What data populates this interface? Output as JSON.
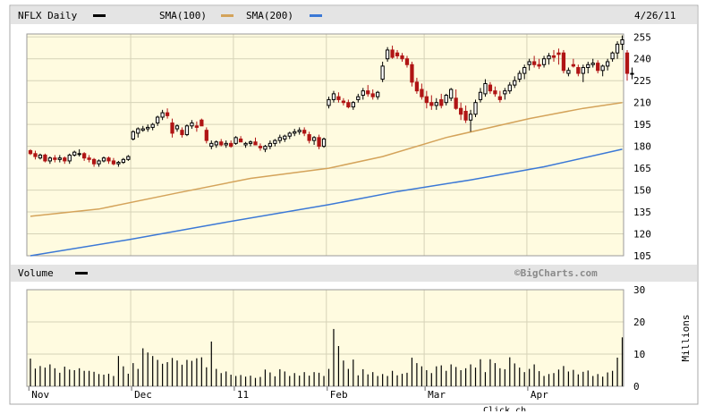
{
  "chart_data": {
    "type": "candlestick",
    "ticker_label": "NFLX Daily",
    "date_label": "4/26/11",
    "watermark": "©BigCharts.com",
    "footer_text": "Click ch",
    "legend": [
      {
        "label": "SMA(100)",
        "color": "#d4a35a"
      },
      {
        "label": "SMA(200)",
        "color": "#3b78d6"
      }
    ],
    "colors": {
      "price_legend": "#000000",
      "up": "#000000",
      "down": "#b01515",
      "volume": "#000000",
      "plot_bg": "#fffbe0",
      "grid": "#d6d3b8"
    },
    "price_axis": {
      "ticks": [
        255,
        240,
        225,
        210,
        195,
        180,
        165,
        150,
        135,
        120,
        105
      ],
      "ylim": [
        105,
        257
      ]
    },
    "volume_axis": {
      "title": "Volume",
      "unit_label": "Millions",
      "ticks": [
        30,
        20,
        10,
        0
      ],
      "ylim": [
        0,
        30
      ]
    },
    "x_labels": [
      "Nov",
      "Dec",
      "11",
      "Feb",
      "Mar",
      "Apr"
    ],
    "month_starts": [
      0,
      21,
      42,
      61,
      81,
      102
    ],
    "sessions": 122,
    "ohlc": [
      [
        177,
        178,
        174,
        175
      ],
      [
        175,
        177,
        171,
        173
      ],
      [
        172,
        175,
        171,
        174
      ],
      [
        174,
        175,
        169,
        170
      ],
      [
        170,
        173,
        168,
        172
      ],
      [
        172,
        174,
        169,
        171
      ],
      [
        171,
        174,
        169,
        172
      ],
      [
        172,
        173,
        168,
        170
      ],
      [
        170,
        175,
        168,
        174
      ],
      [
        174,
        177,
        173,
        176
      ],
      [
        175,
        178,
        173,
        175
      ],
      [
        175,
        176,
        170,
        172
      ],
      [
        172,
        174,
        169,
        171
      ],
      [
        171,
        172,
        166,
        168
      ],
      [
        168,
        171,
        166,
        170
      ],
      [
        170,
        173,
        169,
        172
      ],
      [
        172,
        173,
        168,
        170
      ],
      [
        170,
        172,
        167,
        168
      ],
      [
        168,
        170,
        166,
        169
      ],
      [
        169,
        172,
        168,
        171
      ],
      [
        171,
        174,
        170,
        173
      ],
      [
        185,
        191,
        184,
        190
      ],
      [
        189,
        193,
        186,
        192
      ],
      [
        191,
        194,
        190,
        192
      ],
      [
        192,
        195,
        190,
        193
      ],
      [
        193,
        196,
        191,
        195
      ],
      [
        196,
        201,
        194,
        200
      ],
      [
        200,
        205,
        198,
        203
      ],
      [
        203,
        206,
        199,
        201
      ],
      [
        196,
        199,
        186,
        189
      ],
      [
        192,
        195,
        190,
        194
      ],
      [
        191,
        193,
        186,
        188
      ],
      [
        188,
        195,
        187,
        194
      ],
      [
        194,
        198,
        192,
        196
      ],
      [
        194,
        197,
        190,
        193
      ],
      [
        198,
        199,
        194,
        194
      ],
      [
        191,
        193,
        182,
        184
      ],
      [
        180,
        184,
        178,
        182
      ],
      [
        181,
        184,
        179,
        183
      ],
      [
        183,
        185,
        180,
        181
      ],
      [
        181,
        184,
        179,
        182
      ],
      [
        182,
        184,
        179,
        180
      ],
      [
        182,
        187,
        181,
        186
      ],
      [
        185,
        187,
        183,
        183
      ],
      [
        181,
        183,
        179,
        182
      ],
      [
        182,
        184,
        180,
        183
      ],
      [
        183,
        186,
        181,
        181
      ],
      [
        180,
        182,
        177,
        179
      ],
      [
        178,
        181,
        176,
        180
      ],
      [
        180,
        184,
        178,
        182
      ],
      [
        182,
        185,
        180,
        184
      ],
      [
        184,
        188,
        182,
        186
      ],
      [
        185,
        188,
        183,
        187
      ],
      [
        187,
        190,
        185,
        189
      ],
      [
        189,
        192,
        187,
        190
      ],
      [
        190,
        193,
        188,
        191
      ],
      [
        191,
        193,
        187,
        189
      ],
      [
        188,
        190,
        182,
        184
      ],
      [
        184,
        187,
        181,
        186
      ],
      [
        186,
        188,
        178,
        180
      ],
      [
        180,
        186,
        179,
        185
      ],
      [
        208,
        214,
        206,
        212
      ],
      [
        212,
        218,
        210,
        216
      ],
      [
        214,
        217,
        210,
        212
      ],
      [
        211,
        213,
        208,
        210
      ],
      [
        210,
        212,
        206,
        207
      ],
      [
        207,
        211,
        205,
        210
      ],
      [
        212,
        216,
        210,
        214
      ],
      [
        215,
        220,
        212,
        218
      ],
      [
        218,
        222,
        214,
        216
      ],
      [
        216,
        219,
        212,
        214
      ],
      [
        214,
        218,
        212,
        217
      ],
      [
        226,
        238,
        224,
        235
      ],
      [
        240,
        248,
        238,
        246
      ],
      [
        246,
        249,
        240,
        241
      ],
      [
        244,
        246,
        240,
        242
      ],
      [
        242,
        244,
        238,
        240
      ],
      [
        240,
        242,
        234,
        236
      ],
      [
        236,
        238,
        221,
        224
      ],
      [
        224,
        227,
        216,
        218
      ],
      [
        219,
        223,
        212,
        214
      ],
      [
        214,
        218,
        206,
        210
      ],
      [
        210,
        215,
        205,
        208
      ],
      [
        208,
        213,
        205,
        210
      ],
      [
        212,
        216,
        206,
        208
      ],
      [
        210,
        216,
        208,
        215
      ],
      [
        213,
        220,
        211,
        219
      ],
      [
        213,
        219,
        205,
        206
      ],
      [
        206,
        210,
        198,
        202
      ],
      [
        204,
        208,
        196,
        198
      ],
      [
        198,
        205,
        190,
        202
      ],
      [
        202,
        212,
        200,
        210
      ],
      [
        212,
        220,
        210,
        217
      ],
      [
        216,
        226,
        214,
        223
      ],
      [
        222,
        224,
        216,
        218
      ],
      [
        218,
        221,
        214,
        216
      ],
      [
        214,
        218,
        210,
        212
      ],
      [
        216,
        220,
        212,
        218
      ],
      [
        218,
        224,
        216,
        222
      ],
      [
        222,
        228,
        220,
        225
      ],
      [
        226,
        232,
        224,
        230
      ],
      [
        230,
        236,
        226,
        234
      ],
      [
        236,
        240,
        232,
        238
      ],
      [
        238,
        242,
        234,
        236
      ],
      [
        236,
        240,
        233,
        235
      ],
      [
        236,
        242,
        234,
        240
      ],
      [
        240,
        244,
        236,
        242
      ],
      [
        242,
        246,
        238,
        241
      ],
      [
        244,
        247,
        236,
        243
      ],
      [
        244,
        246,
        230,
        232
      ],
      [
        230,
        234,
        228,
        232
      ],
      [
        236,
        240,
        234,
        235
      ],
      [
        234,
        236,
        228,
        230
      ],
      [
        230,
        236,
        224,
        234
      ],
      [
        234,
        238,
        230,
        236
      ],
      [
        236,
        240,
        234,
        237
      ],
      [
        237,
        239,
        230,
        232
      ],
      [
        232,
        236,
        228,
        235
      ],
      [
        235,
        240,
        232,
        238
      ],
      [
        240,
        245,
        238,
        244
      ],
      [
        244,
        252,
        240,
        250
      ],
      [
        250,
        256,
        246,
        253
      ],
      [
        244,
        246,
        225,
        230
      ],
      [
        230,
        234,
        226,
        230
      ]
    ],
    "sma100": [
      [
        0,
        132
      ],
      [
        14,
        137
      ],
      [
        30,
        148
      ],
      [
        45,
        158
      ],
      [
        61,
        165
      ],
      [
        72,
        173
      ],
      [
        85,
        186
      ],
      [
        102,
        199
      ],
      [
        113,
        206
      ],
      [
        121,
        210
      ]
    ],
    "sma200": [
      [
        0,
        105
      ],
      [
        20,
        116
      ],
      [
        40,
        128
      ],
      [
        61,
        140
      ],
      [
        75,
        149
      ],
      [
        90,
        157
      ],
      [
        105,
        166
      ],
      [
        121,
        178
      ]
    ],
    "volume": [
      8.6,
      5.5,
      6.3,
      5.8,
      6.8,
      5.6,
      4.2,
      6.1,
      5.2,
      5.0,
      5.6,
      4.8,
      4.8,
      4.5,
      3.8,
      3.6,
      3.9,
      3.2,
      9.4,
      6.2,
      3.9,
      7.2,
      5.4,
      11.8,
      10.5,
      9.4,
      8.2,
      7.0,
      7.5,
      8.8,
      8.0,
      6.7,
      8.2,
      7.9,
      8.7,
      9.0,
      5.9,
      13.9,
      5.4,
      4.1,
      4.6,
      3.6,
      3.2,
      3.5,
      3.0,
      3.3,
      2.6,
      2.9,
      5.2,
      4.3,
      3.1,
      5.3,
      4.6,
      3.2,
      4.1,
      3.3,
      4.4,
      3.3,
      4.4,
      4.2,
      3.2,
      5.4,
      17.8,
      12.5,
      8.0,
      5.4,
      8.3,
      3.4,
      5.3,
      3.7,
      4.4,
      3.2,
      3.8,
      3.2,
      4.8,
      3.4,
      3.9,
      4.2,
      8.9,
      7.2,
      6.2,
      5.0,
      4.1,
      6.2,
      6.5,
      4.8,
      6.8,
      6.0,
      5.0,
      5.6,
      6.8,
      5.8,
      8.4,
      4.4,
      8.4,
      7.2,
      5.6,
      5.3,
      9.0,
      7.1,
      5.8,
      4.4,
      5.4,
      6.8,
      4.7,
      3.2,
      3.8,
      4.1,
      5.2,
      6.3,
      4.6,
      5.1,
      3.7,
      4.5,
      4.9,
      3.2,
      3.8,
      3.0,
      4.3,
      4.8,
      8.9,
      15.2
    ]
  }
}
